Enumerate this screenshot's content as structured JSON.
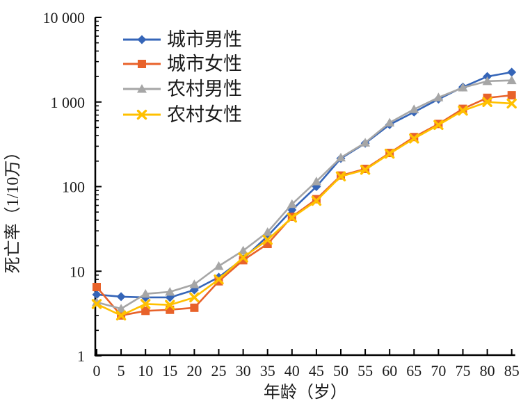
{
  "figure": {
    "background": "#ffffff",
    "axis_color": "#000000"
  },
  "chart_data": {
    "type": "line",
    "title": "",
    "xlabel": "年龄（岁）",
    "ylabel": "死亡率（1/10万）",
    "x": [
      0,
      5,
      10,
      15,
      20,
      25,
      30,
      35,
      40,
      45,
      50,
      55,
      60,
      65,
      70,
      75,
      80,
      85
    ],
    "x_tick_labels": [
      "0",
      "5",
      "10",
      "15",
      "20",
      "25",
      "30",
      "35",
      "40",
      "45",
      "50",
      "55",
      "60",
      "65",
      "70",
      "75",
      "80",
      "85"
    ],
    "y_scale": "log",
    "ylim": [
      1,
      10000
    ],
    "y_ticks": [
      1,
      10,
      100,
      1000,
      10000
    ],
    "y_tick_labels": [
      "1",
      "10",
      "100",
      "1 000",
      "10 000"
    ],
    "grid": false,
    "legend_position": "top-left-inside",
    "series": [
      {
        "name": "城市男性",
        "color": "#3565b8",
        "marker": "diamond",
        "values": [
          5.3,
          5.0,
          4.9,
          4.9,
          6.0,
          8.5,
          14,
          26,
          53,
          100,
          215,
          325,
          540,
          760,
          1080,
          1500,
          2000,
          2250
        ]
      },
      {
        "name": "城市女性",
        "color": "#e8622a",
        "marker": "square",
        "values": [
          6.5,
          3.0,
          3.4,
          3.5,
          3.7,
          7.6,
          13.5,
          21,
          44,
          71,
          135,
          162,
          250,
          385,
          550,
          830,
          1120,
          1200
        ]
      },
      {
        "name": "农村男性",
        "color": "#a6a6a6",
        "marker": "triangle",
        "values": [
          4.3,
          3.6,
          5.4,
          5.7,
          7.0,
          11.5,
          17.5,
          29,
          62,
          115,
          220,
          330,
          570,
          820,
          1130,
          1480,
          1760,
          1800
        ]
      },
      {
        "name": "农村女性",
        "color": "#ffc000",
        "marker": "x",
        "values": [
          4.1,
          3.0,
          4.1,
          4.0,
          4.9,
          8.0,
          14.5,
          23.5,
          43,
          68,
          132,
          158,
          245,
          370,
          535,
          790,
          1000,
          960
        ]
      }
    ]
  }
}
